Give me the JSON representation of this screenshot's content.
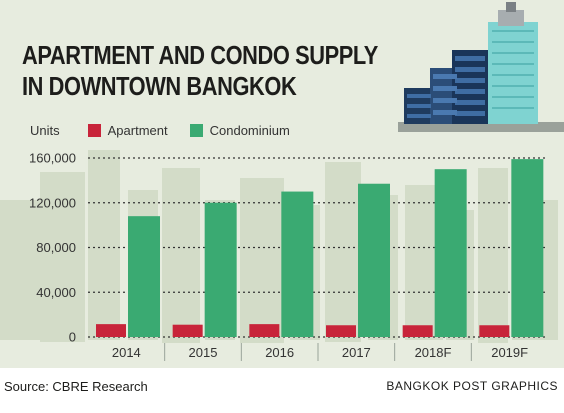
{
  "title_lines": [
    "APARTMENT AND CONDO SUPPLY",
    "IN DOWNTOWN BANGKOK"
  ],
  "legend": {
    "units_label": "Units",
    "apartment": "Apartment",
    "condominium": "Condominium"
  },
  "colors": {
    "apartment": "#c8243a",
    "condominium": "#3aaa72",
    "background": "#e7ecdf",
    "skyline": "#d3dcc8",
    "grid": "#333333"
  },
  "footer": {
    "source": "Source: CBRE Research",
    "credit": "BANGKOK POST GRAPHICS"
  },
  "chart_data": {
    "type": "bar",
    "title": "APARTMENT AND CONDO SUPPLY IN DOWNTOWN BANGKOK",
    "ylabel": "Units",
    "categories": [
      "2014",
      "2015",
      "2016",
      "2017",
      "2018F",
      "2019F"
    ],
    "series": [
      {
        "name": "Apartment",
        "values": [
          11500,
          11000,
          11500,
          10500,
          10500,
          10500
        ]
      },
      {
        "name": "Condominium",
        "values": [
          108000,
          120000,
          130000,
          137000,
          150000,
          159000
        ]
      }
    ],
    "ylim": [
      0,
      160000
    ],
    "yticks": [
      0,
      40000,
      80000,
      120000,
      160000
    ],
    "ytick_labels": [
      "0",
      "40,000",
      "80,000",
      "120,000",
      "160,000"
    ],
    "grid": true,
    "legend_position": "top-left"
  }
}
